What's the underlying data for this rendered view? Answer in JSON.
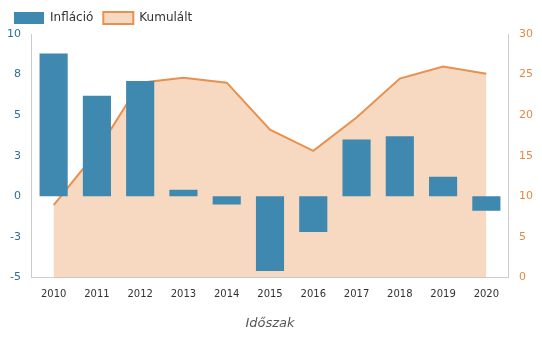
{
  "chart_data": {
    "type": "bar",
    "x_label": "Időszak",
    "categories": [
      "2010",
      "2011",
      "2012",
      "2013",
      "2014",
      "2015",
      "2016",
      "2017",
      "2018",
      "2019",
      "2020"
    ],
    "series": [
      {
        "name": "Infláció",
        "type": "bar",
        "color": "#3f88b0",
        "values": [
          8.8,
          6.2,
          7.1,
          0.4,
          -0.5,
          -4.6,
          -2.2,
          3.5,
          3.7,
          1.2,
          -0.9
        ]
      },
      {
        "name": "Kumulált",
        "type": "line",
        "axis": "y2",
        "color": "#e8914e",
        "values": [
          8.9,
          15.5,
          24.0,
          24.6,
          24.0,
          18.2,
          15.6,
          19.7,
          24.5,
          26.0,
          25.1
        ]
      }
    ],
    "ylim": [
      -5,
      10
    ],
    "yticks": [
      -5,
      {
        "value": -2.5,
        "label": "-3"
      },
      0,
      {
        "value": 2.5,
        "label": "3"
      },
      5,
      {
        "value": 7.5,
        "label": "8"
      },
      10
    ],
    "y2lim": [
      0,
      30
    ],
    "y2ticks": [
      0,
      5,
      10,
      15,
      20,
      25,
      30
    ],
    "grid": false,
    "legend": "top-left"
  }
}
